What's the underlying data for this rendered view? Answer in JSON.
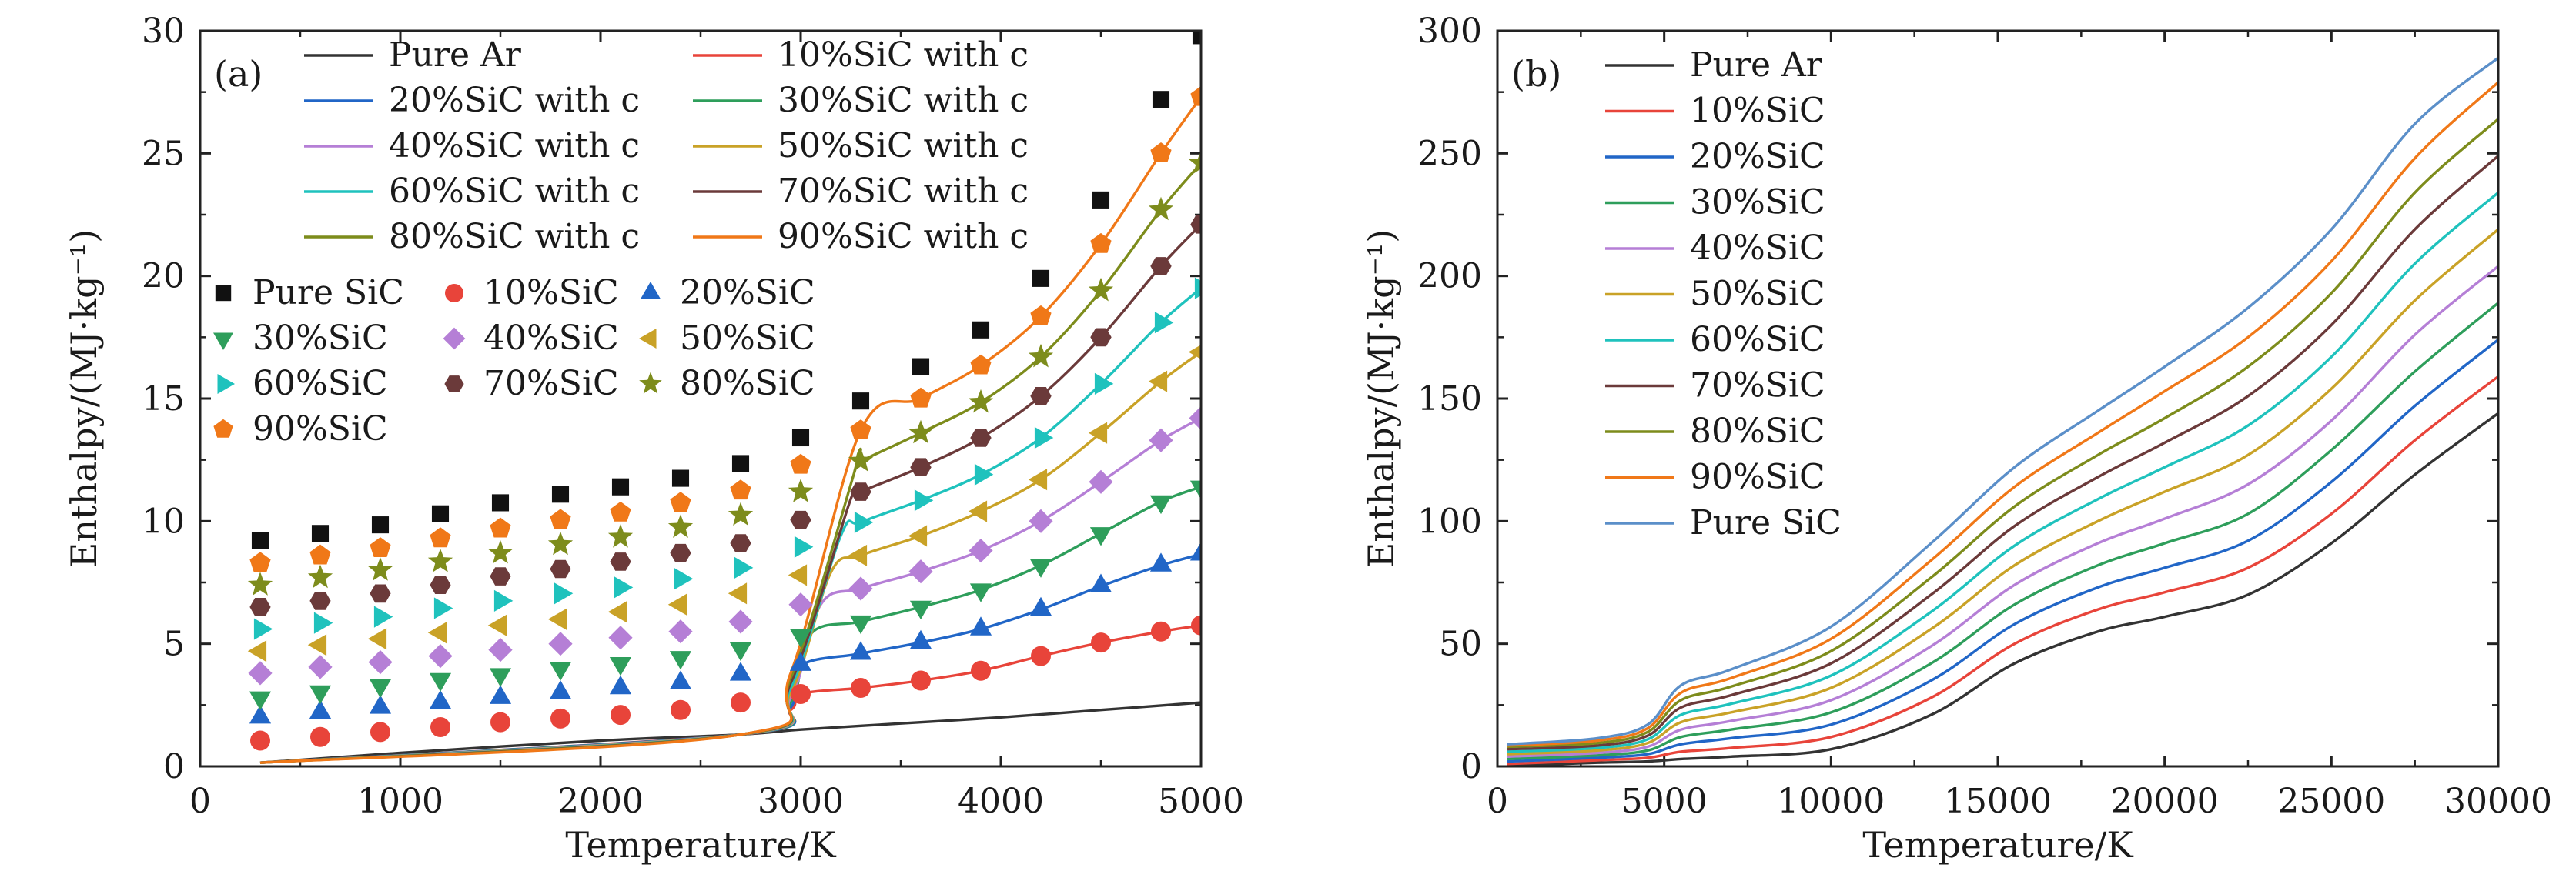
{
  "chart_data": [
    {
      "type": "line+scatter",
      "panel_label": "(a)",
      "xlabel": "Temperature/K",
      "ylabel": "Enthalpy/(MJ·kg⁻¹)",
      "xlim": [
        0,
        5000
      ],
      "ylim": [
        0,
        30
      ],
      "xticks": [
        "0",
        "1000",
        "2000",
        "3000",
        "4000",
        "5000"
      ],
      "yticks": [
        "0",
        "5",
        "10",
        "15",
        "20",
        "25",
        "30"
      ],
      "line_series": [
        {
          "name": "Pure Ar",
          "color": "#333333",
          "x": [
            300,
            1000,
            2000,
            2700,
            3000,
            3500,
            4000,
            4500,
            5000
          ],
          "values": [
            0.15,
            0.55,
            1.05,
            1.3,
            1.5,
            1.75,
            2.0,
            2.3,
            2.6
          ]
        },
        {
          "name": "10%SiC with c",
          "color": "#e8443a",
          "x": [
            300,
            2700,
            2950,
            3000,
            3300,
            3600,
            3900,
            4200,
            4500,
            4800,
            5000
          ],
          "values": [
            0.15,
            1.3,
            2.3,
            2.95,
            3.2,
            3.5,
            3.9,
            4.5,
            5.05,
            5.5,
            5.75
          ]
        },
        {
          "name": "20%SiC with c",
          "color": "#2166c7",
          "x": [
            300,
            2700,
            2950,
            3000,
            3300,
            3600,
            3900,
            4200,
            4500,
            4800,
            5000
          ],
          "values": [
            0.15,
            1.3,
            2.4,
            4.1,
            4.6,
            5.05,
            5.6,
            6.4,
            7.35,
            8.2,
            8.65
          ]
        },
        {
          "name": "30%SiC with c",
          "color": "#2e9e5b",
          "x": [
            300,
            2700,
            2950,
            3050,
            3300,
            3600,
            3900,
            4200,
            4500,
            4800,
            5000
          ],
          "values": [
            0.15,
            1.3,
            2.6,
            5.4,
            5.9,
            6.5,
            7.2,
            8.2,
            9.5,
            10.8,
            11.4
          ]
        },
        {
          "name": "40%SiC with c",
          "color": "#b57fd6",
          "x": [
            300,
            2700,
            2950,
            3100,
            3300,
            3600,
            3900,
            4200,
            4500,
            4800,
            5000
          ],
          "values": [
            0.15,
            1.3,
            2.8,
            6.6,
            7.25,
            7.95,
            8.8,
            10.0,
            11.6,
            13.3,
            14.2
          ]
        },
        {
          "name": "50%SiC with c",
          "color": "#c9a227",
          "x": [
            300,
            2700,
            2950,
            3150,
            3300,
            3600,
            3900,
            4200,
            4500,
            4800,
            5000
          ],
          "values": [
            0.15,
            1.3,
            3.0,
            7.9,
            8.6,
            9.4,
            10.4,
            11.7,
            13.6,
            15.7,
            16.9
          ]
        },
        {
          "name": "60%SiC with c",
          "color": "#1fc2bd",
          "x": [
            300,
            2700,
            2950,
            3200,
            3300,
            3600,
            3900,
            4200,
            4500,
            4800,
            5000
          ],
          "values": [
            0.15,
            1.3,
            3.2,
            9.4,
            9.95,
            10.85,
            11.9,
            13.4,
            15.6,
            18.1,
            19.5
          ]
        },
        {
          "name": "70%SiC with c",
          "color": "#6b3a3a",
          "x": [
            300,
            2700,
            2950,
            3250,
            3300,
            3600,
            3900,
            4200,
            4500,
            4800,
            5000
          ],
          "values": [
            0.15,
            1.3,
            3.4,
            10.9,
            11.2,
            12.2,
            13.4,
            15.1,
            17.5,
            20.4,
            22.1
          ]
        },
        {
          "name": "80%SiC with c",
          "color": "#7d8c1c",
          "x": [
            300,
            2700,
            2950,
            3280,
            3300,
            3600,
            3900,
            4200,
            4500,
            4800,
            5000
          ],
          "values": [
            0.15,
            1.3,
            3.6,
            12.3,
            12.45,
            13.6,
            14.85,
            16.7,
            19.4,
            22.7,
            24.6
          ]
        },
        {
          "name": "90%SiC with c",
          "color": "#f07818",
          "x": [
            300,
            2700,
            2950,
            3300,
            3600,
            3900,
            4200,
            4500,
            4800,
            5000
          ],
          "values": [
            0.15,
            1.3,
            3.8,
            13.7,
            15.0,
            16.35,
            18.35,
            21.3,
            25.0,
            27.3
          ]
        }
      ],
      "scatter_series": [
        {
          "name": "Pure SiC",
          "marker": "square",
          "color": "#111111",
          "x": [
            300,
            600,
            900,
            1200,
            1500,
            1800,
            2100,
            2400,
            2700,
            3000,
            3300,
            3600,
            3900,
            4200,
            4500,
            4800,
            5000
          ],
          "values": [
            9.2,
            9.5,
            9.85,
            10.3,
            10.75,
            11.1,
            11.4,
            11.75,
            12.35,
            13.4,
            14.9,
            16.3,
            17.8,
            19.9,
            23.1,
            27.2,
            29.8
          ]
        },
        {
          "name": "10%SiC",
          "marker": "circle",
          "color": "#e8443a",
          "x": [
            300,
            600,
            900,
            1200,
            1500,
            1800,
            2100,
            2400,
            2700,
            3000,
            3300,
            3600,
            3900,
            4200,
            4500,
            4800,
            5000
          ],
          "values": [
            1.05,
            1.2,
            1.4,
            1.6,
            1.8,
            1.95,
            2.1,
            2.3,
            2.6,
            2.95,
            3.2,
            3.5,
            3.9,
            4.5,
            5.05,
            5.5,
            5.75
          ]
        },
        {
          "name": "20%SiC",
          "marker": "triangle-up",
          "color": "#2166c7",
          "x": [
            300,
            600,
            900,
            1200,
            1500,
            1800,
            2100,
            2400,
            2700,
            3000,
            3300,
            3600,
            3900,
            4200,
            4500,
            4800,
            5000
          ],
          "values": [
            2.0,
            2.2,
            2.4,
            2.6,
            2.8,
            3.0,
            3.2,
            3.4,
            3.75,
            4.15,
            4.6,
            5.05,
            5.6,
            6.4,
            7.35,
            8.2,
            8.65
          ]
        },
        {
          "name": "30%SiC",
          "marker": "triangle-down",
          "color": "#2e9e5b",
          "x": [
            300,
            600,
            900,
            1200,
            1500,
            1800,
            2100,
            2400,
            2700,
            3000,
            3300,
            3600,
            3900,
            4200,
            4500,
            4800,
            5000
          ],
          "values": [
            2.8,
            3.05,
            3.3,
            3.55,
            3.75,
            4.0,
            4.2,
            4.45,
            4.8,
            5.35,
            5.9,
            6.5,
            7.2,
            8.2,
            9.5,
            10.8,
            11.4
          ]
        },
        {
          "name": "40%SiC",
          "marker": "diamond",
          "color": "#b57fd6",
          "x": [
            300,
            600,
            900,
            1200,
            1500,
            1800,
            2100,
            2400,
            2700,
            3000,
            3300,
            3600,
            3900,
            4200,
            4500,
            4800,
            5000
          ],
          "values": [
            3.8,
            4.05,
            4.25,
            4.5,
            4.75,
            5.0,
            5.25,
            5.5,
            5.9,
            6.6,
            7.25,
            7.95,
            8.8,
            10.0,
            11.6,
            13.3,
            14.2
          ]
        },
        {
          "name": "50%SiC",
          "marker": "triangle-left",
          "color": "#c9a227",
          "x": [
            300,
            600,
            900,
            1200,
            1500,
            1800,
            2100,
            2400,
            2700,
            3000,
            3300,
            3600,
            3900,
            4200,
            4500,
            4800,
            5000
          ],
          "values": [
            4.7,
            4.95,
            5.2,
            5.45,
            5.75,
            6.0,
            6.3,
            6.6,
            7.05,
            7.8,
            8.6,
            9.4,
            10.4,
            11.7,
            13.6,
            15.7,
            16.9
          ]
        },
        {
          "name": "60%SiC",
          "marker": "triangle-right",
          "color": "#1fc2bd",
          "x": [
            300,
            600,
            900,
            1200,
            1500,
            1800,
            2100,
            2400,
            2700,
            3000,
            3300,
            3600,
            3900,
            4200,
            4500,
            4800,
            5000
          ],
          "values": [
            5.6,
            5.85,
            6.1,
            6.45,
            6.75,
            7.05,
            7.3,
            7.65,
            8.1,
            8.95,
            9.95,
            10.85,
            11.9,
            13.4,
            15.6,
            18.1,
            19.5
          ]
        },
        {
          "name": "70%SiC",
          "marker": "hexagon",
          "color": "#6b3a3a",
          "x": [
            300,
            600,
            900,
            1200,
            1500,
            1800,
            2100,
            2400,
            2700,
            3000,
            3300,
            3600,
            3900,
            4200,
            4500,
            4800,
            5000
          ],
          "values": [
            6.5,
            6.75,
            7.05,
            7.4,
            7.75,
            8.05,
            8.35,
            8.7,
            9.1,
            10.05,
            11.2,
            12.2,
            13.4,
            15.1,
            17.5,
            20.4,
            22.1
          ]
        },
        {
          "name": "80%SiC",
          "marker": "star",
          "color": "#7d8c1c",
          "x": [
            300,
            600,
            900,
            1200,
            1500,
            1800,
            2100,
            2400,
            2700,
            3000,
            3300,
            3600,
            3900,
            4200,
            4500,
            4800,
            5000
          ],
          "values": [
            7.4,
            7.7,
            8.0,
            8.35,
            8.7,
            9.05,
            9.35,
            9.75,
            10.25,
            11.2,
            12.45,
            13.6,
            14.85,
            16.7,
            19.4,
            22.7,
            24.6
          ]
        },
        {
          "name": "90%SiC",
          "marker": "pentagon",
          "color": "#f07818",
          "x": [
            300,
            600,
            900,
            1200,
            1500,
            1800,
            2100,
            2400,
            2700,
            3000,
            3300,
            3600,
            3900,
            4200,
            4500,
            4800,
            5000
          ],
          "values": [
            8.3,
            8.6,
            8.9,
            9.3,
            9.7,
            10.05,
            10.35,
            10.75,
            11.25,
            12.3,
            13.7,
            15.0,
            16.35,
            18.35,
            21.3,
            25.0,
            27.3
          ]
        }
      ],
      "legend_position": "top-left"
    },
    {
      "type": "line",
      "panel_label": "(b)",
      "xlabel": "Temperature/K",
      "ylabel": "Enthalpy/(MJ·kg⁻¹)",
      "xlim": [
        0,
        30000
      ],
      "ylim": [
        0,
        300
      ],
      "xticks": [
        "0",
        "5000",
        "10000",
        "15000",
        "20000",
        "25000",
        "30000"
      ],
      "yticks": [
        "0",
        "50",
        "100",
        "150",
        "200",
        "250",
        "300"
      ],
      "x": [
        300,
        3000,
        4500,
        5500,
        7000,
        10000,
        13000,
        15500,
        18000,
        20000,
        22500,
        25000,
        27500,
        30000
      ],
      "series": [
        {
          "name": "Pure Ar",
          "color": "#333333",
          "values": [
            0.2,
            1.5,
            2,
            3,
            4,
            7,
            21,
            42,
            55,
            61,
            70,
            91,
            119,
            144
          ]
        },
        {
          "name": "10%SiC",
          "color": "#e8443a",
          "values": [
            1,
            2.5,
            3.5,
            6,
            7.5,
            12,
            28,
            50,
            64,
            71,
            81,
            103,
            133,
            159
          ]
        },
        {
          "name": "20%SiC",
          "color": "#2166c7",
          "values": [
            2,
            3.5,
            5,
            9,
            11.5,
            17,
            35,
            58,
            73,
            81,
            92,
            116,
            147,
            174
          ]
        },
        {
          "name": "30%SiC",
          "color": "#2e9e5b",
          "values": [
            3,
            4.5,
            6.5,
            12,
            15,
            22,
            42,
            66,
            82,
            91,
            103,
            129,
            161,
            189
          ]
        },
        {
          "name": "40%SiC",
          "color": "#b57fd6",
          "values": [
            4,
            5.5,
            8,
            15,
            18.5,
            27,
            49,
            74,
            91,
            101,
            115,
            141,
            176,
            204
          ]
        },
        {
          "name": "50%SiC",
          "color": "#c9a227",
          "values": [
            5,
            6.5,
            9.5,
            18,
            22,
            32,
            56,
            82,
            100,
            112,
            127,
            154,
            190,
            219
          ]
        },
        {
          "name": "60%SiC",
          "color": "#1fc2bd",
          "values": [
            6,
            7.5,
            11,
            21,
            25.5,
            37,
            63,
            90,
            109,
            122,
            139,
            167,
            205,
            234
          ]
        },
        {
          "name": "70%SiC",
          "color": "#6b3a3a",
          "values": [
            7,
            8.5,
            12.5,
            24,
            29,
            42,
            70,
            98,
            118,
            132,
            151,
            180,
            219,
            249
          ]
        },
        {
          "name": "80%SiC",
          "color": "#7d8c1c",
          "values": [
            8,
            9.5,
            14,
            27,
            32.5,
            47,
            77,
            106,
            127,
            142,
            163,
            193,
            234,
            264
          ]
        },
        {
          "name": "90%SiC",
          "color": "#f07818",
          "values": [
            8.5,
            10.5,
            15.5,
            30,
            36,
            52,
            84,
            114,
            136,
            153,
            175,
            206,
            248,
            279
          ]
        },
        {
          "name": "Pure SiC",
          "color": "#5b8fc9",
          "values": [
            9,
            11.5,
            17,
            33,
            39.5,
            57,
            91,
            122,
            145,
            163,
            187,
            219,
            262,
            289
          ]
        }
      ],
      "legend_position": "top-left"
    }
  ]
}
